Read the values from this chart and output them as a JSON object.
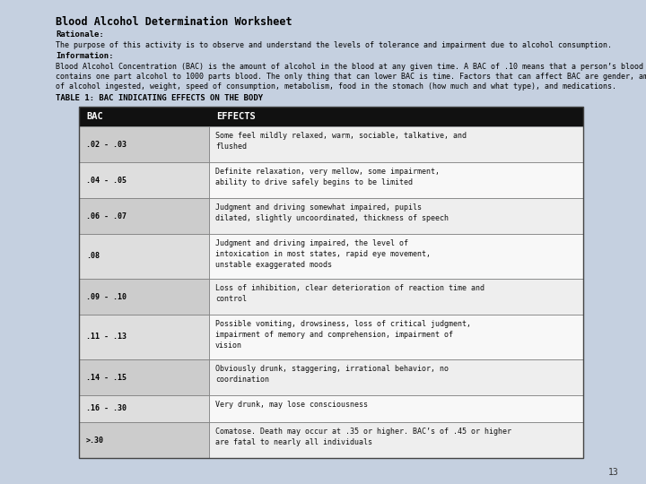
{
  "background_color": "#c5d0e0",
  "title": "Blood Alcohol Determination Worksheet",
  "rationale_label": "Rationale:",
  "rationale_text": "The purpose of this activity is to observe and understand the levels of tolerance and impairment due to alcohol consumption.",
  "information_label": "Information:",
  "information_text": "Blood Alcohol Concentration (BAC) is the amount of alcohol in the blood at any given time. A BAC of .10 means that a person’s blood contains one part alcohol to 1000 parts blood. The only thing that can lower BAC is time. Factors that can affect BAC are gender, amount of alcohol ingested, weight, speed of consumption, metabolism, food in the stomach (how much and what type), and medications.",
  "table_title": "TABLE 1: BAC INDICATING EFFECTS ON THE BODY",
  "header_bg": "#111111",
  "header_text_color": "#ffffff",
  "bac_col_bg": "#d0d0d0",
  "eff_col_bg": "#f0f0f0",
  "table_rows": [
    [
      ".02 - .03",
      "Some feel mildly relaxed, warm, sociable, talkative, and\nflushed"
    ],
    [
      ".04 - .05",
      "Definite relaxation, very mellow, some impairment,\nability to drive safely begins to be limited"
    ],
    [
      ".06 - .07",
      "Judgment and driving somewhat impaired, pupils\ndilated, slightly uncoordinated, thickness of speech"
    ],
    [
      ".08",
      "Judgment and driving impaired, the level of\nintoxication in most states, rapid eye movement,\nunstable exaggerated moods"
    ],
    [
      ".09 - .10",
      "Loss of inhibition, clear deterioration of reaction time and\ncontrol"
    ],
    [
      ".11 - .13",
      "Possible vomiting, drowsiness, loss of critical judgment,\nimpairment of memory and comprehension, impairment of\nvision"
    ],
    [
      ".14 - .15",
      "Obviously drunk, staggering, irrational behavior, no\ncoordination"
    ],
    [
      ".16 - .30",
      "Very drunk, may lose consciousness"
    ],
    [
      ">.30",
      "Comatose. Death may occur at .35 or higher. BAC’s of .45 or higher\nare fatal to nearly all individuals"
    ]
  ],
  "page_number": "13",
  "title_fontsize": 8.5,
  "label_fontsize": 6.5,
  "body_fontsize": 6.0,
  "table_title_fontsize": 6.5,
  "header_fontsize": 7.5,
  "row_fontsize": 6.0
}
